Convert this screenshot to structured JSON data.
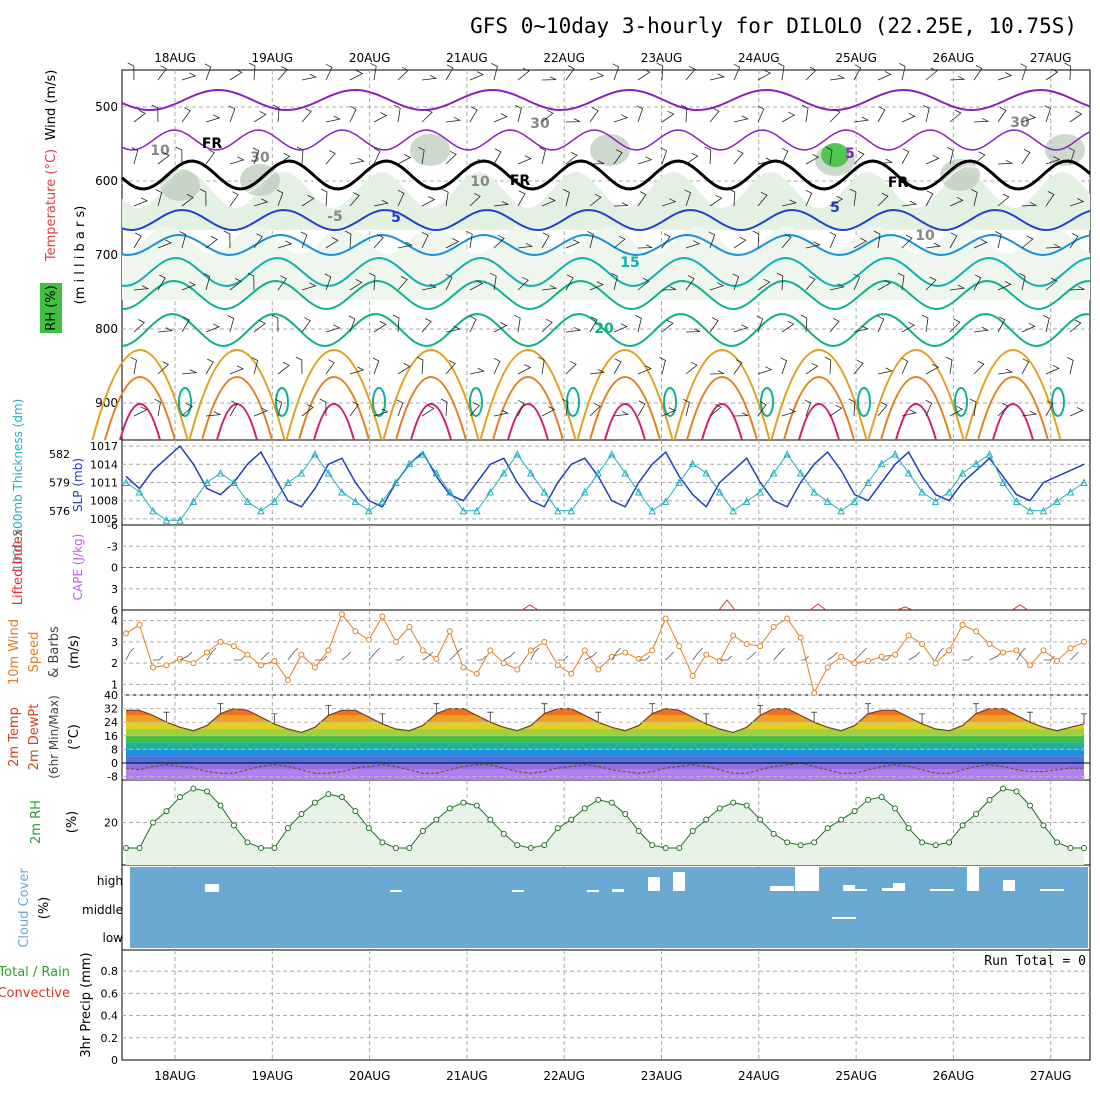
{
  "title": "GFS 0~10day 3-hourly for DILOLO (22.25E, 10.75S)",
  "dates": [
    "18AUG",
    "19AUG",
    "20AUG",
    "21AUG",
    "22AUG",
    "23AUG",
    "24AUG",
    "25AUG",
    "26AUG",
    "27AUG"
  ],
  "colors": {
    "wind_axis": "#000000",
    "temperature": "#e04040",
    "rh": "#40c040",
    "slp": "#2040c0",
    "thickness": "#20b0c0",
    "lifted": "#e03030",
    "cape": "#c060e0",
    "wind10": "#e08020",
    "temp2m": "#d04020",
    "cloud": "#6aa9d2",
    "precip_total": "#30a030",
    "precip_conv": "#e03030"
  },
  "panels": {
    "upper": {
      "label_wind": "Wind (m/s)",
      "label_temp": "Temperature (°C)",
      "label_rh": "RH (%)",
      "label_mb": "(m i l l i b a r s)",
      "levels": [
        "500",
        "600",
        "700",
        "800",
        "900"
      ],
      "contour_labels": [
        "FR",
        "FR",
        "FR",
        "5",
        "5",
        "5",
        "15",
        "20",
        "30",
        "30",
        "30",
        "10",
        "10",
        "10",
        "-5"
      ]
    },
    "slp": {
      "label_thick": "1000-500mb Thickness (dm)",
      "label_slp": "SLP (mb)",
      "thick_ticks": [
        "582",
        "579",
        "576"
      ],
      "slp_ticks": [
        "1017",
        "1014",
        "1011",
        "1008",
        "1005"
      ]
    },
    "li": {
      "label_li": "Lifted Index",
      "label_cape": "CAPE (J/kg)",
      "ticks": [
        "-6",
        "-3",
        "0",
        "3",
        "6"
      ]
    },
    "wind10": {
      "label_a": "10m Wind",
      "label_b": "Speed",
      "label_c": "& Barbs",
      "label_unit": "(m/s)",
      "ticks": [
        "4",
        "3",
        "2",
        "1"
      ]
    },
    "temp2m": {
      "label_a": "2m Temp",
      "label_b": "2m DewPt",
      "label_c": "(6hr Min/Max)",
      "label_unit": "(°C)",
      "ticks": [
        "40",
        "32",
        "24",
        "16",
        "8",
        "0",
        "-8"
      ]
    },
    "rh2m": {
      "label": "2m RH",
      "unit": "(%)",
      "ticks": [
        "20"
      ]
    },
    "cloud": {
      "label": "Cloud Cover",
      "unit": "(%)",
      "ticks": [
        "high",
        "middle",
        "low"
      ]
    },
    "precip": {
      "label_total": "Total / Rain",
      "label_conv": "Convective",
      "label_unit": "3hr Precip (mm)",
      "run_total": "Run Total = 0",
      "ticks": [
        "0.8",
        "0.6",
        "0.4",
        "0.2",
        "0"
      ]
    }
  },
  "chart_data": [
    {
      "type": "line",
      "name": "sea level pressure",
      "ylabel": "SLP (mb)",
      "ylim": [
        1005,
        1017
      ],
      "values": [
        1012,
        1010,
        1013,
        1015,
        1017,
        1014,
        1010,
        1009,
        1011,
        1014,
        1016,
        1012,
        1008,
        1007,
        1010,
        1014,
        1015,
        1011,
        1008,
        1007,
        1011,
        1014,
        1016,
        1012,
        1009,
        1008,
        1011,
        1014,
        1015,
        1011,
        1008,
        1007,
        1011,
        1014,
        1015,
        1012,
        1008,
        1007,
        1011,
        1014,
        1016,
        1012,
        1009,
        1007,
        1011,
        1013,
        1015,
        1011,
        1008,
        1007,
        1011,
        1014,
        1016,
        1013,
        1009,
        1008,
        1011,
        1014,
        1016,
        1012,
        1009,
        1008,
        1011,
        1013,
        1015,
        1012,
        1009,
        1008,
        1011,
        1012,
        1013,
        1014
      ]
    },
    {
      "type": "line",
      "name": "1000-500mb thickness",
      "ylabel": "Thickness (dm)",
      "ylim": [
        575,
        583
      ],
      "values": [
        579,
        578,
        576,
        575,
        575,
        577,
        579,
        580,
        579,
        577,
        576,
        577,
        579,
        580,
        582,
        580,
        578,
        577,
        576,
        577,
        579,
        581,
        582,
        580,
        578,
        576,
        576,
        578,
        580,
        582,
        580,
        578,
        576,
        576,
        578,
        580,
        582,
        580,
        578,
        576,
        577,
        579,
        581,
        580,
        578,
        576,
        577,
        578,
        580,
        582,
        580,
        578,
        577,
        576,
        577,
        579,
        581,
        582,
        580,
        578,
        577,
        578,
        580,
        581,
        582,
        579,
        577,
        576,
        576,
        577,
        578,
        579
      ]
    },
    {
      "type": "line",
      "name": "10m wind speed",
      "ylabel": "(m/s)",
      "ylim": [
        0.5,
        4.5
      ],
      "values": [
        3.4,
        3.8,
        1.8,
        1.9,
        2.2,
        2.0,
        2.5,
        3.0,
        2.8,
        2.4,
        1.9,
        2.1,
        1.2,
        2.4,
        1.8,
        2.6,
        4.3,
        3.5,
        3.1,
        4.2,
        3.0,
        3.7,
        2.6,
        2.2,
        3.5,
        1.8,
        1.5,
        2.6,
        2.0,
        1.7,
        2.6,
        3.0,
        1.9,
        1.5,
        2.6,
        1.7,
        2.3,
        2.5,
        2.2,
        2.6,
        4.1,
        2.8,
        1.4,
        2.4,
        2.1,
        3.3,
        2.9,
        2.8,
        3.7,
        4.1,
        3.2,
        0.6,
        1.8,
        2.3,
        2.0,
        2.1,
        2.3,
        2.4,
        3.3,
        2.9,
        2.0,
        2.6,
        3.8,
        3.5,
        2.9,
        2.5,
        2.6,
        1.9,
        2.6,
        2.1,
        2.7,
        3.0
      ]
    },
    {
      "type": "area",
      "name": "2m temperature",
      "ylabel": "(°C)",
      "ylim": [
        -10,
        40
      ],
      "values": [
        31,
        31,
        28,
        24,
        21,
        19,
        22,
        29,
        32,
        31,
        27,
        23,
        20,
        18,
        21,
        28,
        31,
        31,
        27,
        23,
        20,
        19,
        22,
        29,
        32,
        32,
        28,
        24,
        21,
        19,
        22,
        29,
        32,
        32,
        28,
        24,
        21,
        19,
        22,
        29,
        32,
        31,
        27,
        23,
        20,
        18,
        21,
        28,
        32,
        32,
        28,
        24,
        21,
        19,
        22,
        29,
        31,
        31,
        27,
        23,
        20,
        19,
        22,
        29,
        32,
        32,
        28,
        24,
        21,
        19,
        21,
        23
      ]
    },
    {
      "type": "line",
      "name": "2m dew point",
      "ylabel": "(°C)",
      "ylim": [
        -10,
        40
      ],
      "values": [
        -3,
        -4,
        -2,
        -1,
        -2,
        -3,
        -5,
        -6,
        -6,
        -4,
        -2,
        -1,
        -2,
        -4,
        -6,
        -6,
        -5,
        -3,
        -2,
        -1,
        -2,
        -4,
        -6,
        -6,
        -4,
        -2,
        -1,
        -1,
        -3,
        -5,
        -6,
        -5,
        -3,
        -2,
        -1,
        -2,
        -4,
        -5,
        -6,
        -5,
        -3,
        -2,
        -1,
        -2,
        -4,
        -6,
        -6,
        -4,
        -2,
        -1,
        0,
        -2,
        -4,
        -6,
        -6,
        -4,
        -2,
        -1,
        -2,
        -4,
        -6,
        -6,
        -4,
        -2,
        -1,
        -2,
        -4,
        -5,
        -5,
        -4,
        -3,
        -3
      ]
    },
    {
      "type": "line",
      "name": "2m relative humidity",
      "ylabel": "(%)",
      "ylim": [
        5,
        35
      ],
      "values": [
        11,
        11,
        20,
        24,
        29,
        32,
        31,
        26,
        19,
        13,
        11,
        11,
        18,
        23,
        27,
        30,
        29,
        24,
        18,
        13,
        11,
        11,
        17,
        21,
        25,
        27,
        26,
        21,
        16,
        12,
        11,
        12,
        18,
        21,
        25,
        28,
        27,
        23,
        17,
        12,
        11,
        11,
        17,
        21,
        25,
        27,
        26,
        21,
        16,
        13,
        12,
        13,
        18,
        21,
        24,
        28,
        29,
        25,
        18,
        13,
        12,
        13,
        19,
        23,
        28,
        32,
        31,
        26,
        19,
        13,
        11,
        11
      ]
    },
    {
      "type": "bar",
      "name": "high cloud cover",
      "values": [
        0,
        0,
        0,
        0,
        0,
        0,
        10,
        10,
        0,
        0,
        0,
        0,
        0,
        0,
        0,
        0,
        0,
        0,
        0,
        0,
        0,
        0,
        0,
        0,
        0,
        0,
        0,
        0,
        0,
        0,
        0,
        0,
        0,
        0,
        0,
        0,
        0,
        0,
        0,
        0,
        0,
        0,
        0,
        0,
        0,
        0,
        0,
        0,
        0,
        0,
        0,
        0,
        0,
        0,
        0,
        0,
        0,
        0,
        0,
        0,
        0,
        0,
        0,
        0,
        0,
        0,
        0,
        0,
        0,
        0,
        0,
        0
      ]
    },
    {
      "type": "bar",
      "name": "3hr precip",
      "ylim": [
        0,
        0.9
      ],
      "values": [
        0,
        0,
        0,
        0,
        0,
        0,
        0,
        0,
        0,
        0,
        0,
        0,
        0,
        0,
        0,
        0,
        0,
        0,
        0,
        0,
        0,
        0,
        0,
        0,
        0,
        0,
        0,
        0,
        0,
        0,
        0,
        0,
        0,
        0,
        0,
        0,
        0,
        0,
        0,
        0,
        0,
        0,
        0,
        0,
        0,
        0,
        0,
        0,
        0,
        0,
        0,
        0,
        0,
        0,
        0,
        0,
        0,
        0,
        0,
        0,
        0,
        0,
        0,
        0,
        0,
        0,
        0,
        0,
        0,
        0,
        0,
        0
      ]
    }
  ]
}
